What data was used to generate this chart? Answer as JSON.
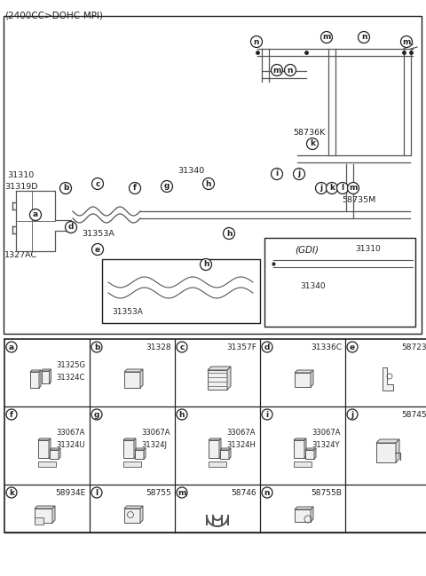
{
  "title": "(2400CC>DOHC-MPI)",
  "bg": "#ffffff",
  "fg": "#000000",
  "gray": "#555555",
  "fig_w": 4.8,
  "fig_h": 6.49,
  "dpi": 100,
  "table_rows": [
    [
      {
        "lbl": "a",
        "part": "",
        "subs": [
          "31325G",
          "31324C"
        ]
      },
      {
        "lbl": "b",
        "part": "31328",
        "subs": []
      },
      {
        "lbl": "c",
        "part": "31357F",
        "subs": []
      },
      {
        "lbl": "d",
        "part": "31336C",
        "subs": []
      },
      {
        "lbl": "e",
        "part": "58723",
        "subs": []
      }
    ],
    [
      {
        "lbl": "f",
        "part": "",
        "subs": [
          "33067A",
          "31324U"
        ]
      },
      {
        "lbl": "g",
        "part": "",
        "subs": [
          "33067A",
          "31324J"
        ]
      },
      {
        "lbl": "h",
        "part": "",
        "subs": [
          "33067A",
          "31324H"
        ]
      },
      {
        "lbl": "i",
        "part": "",
        "subs": [
          "33067A",
          "31324Y"
        ]
      },
      {
        "lbl": "j",
        "part": "58745",
        "subs": []
      }
    ],
    [
      {
        "lbl": "k",
        "part": "58934E",
        "subs": []
      },
      {
        "lbl": "l",
        "part": "58755",
        "subs": []
      },
      {
        "lbl": "m",
        "part": "58746",
        "subs": []
      },
      {
        "lbl": "n",
        "part": "58755B",
        "subs": []
      },
      {
        "lbl": "",
        "part": "",
        "subs": []
      }
    ]
  ]
}
